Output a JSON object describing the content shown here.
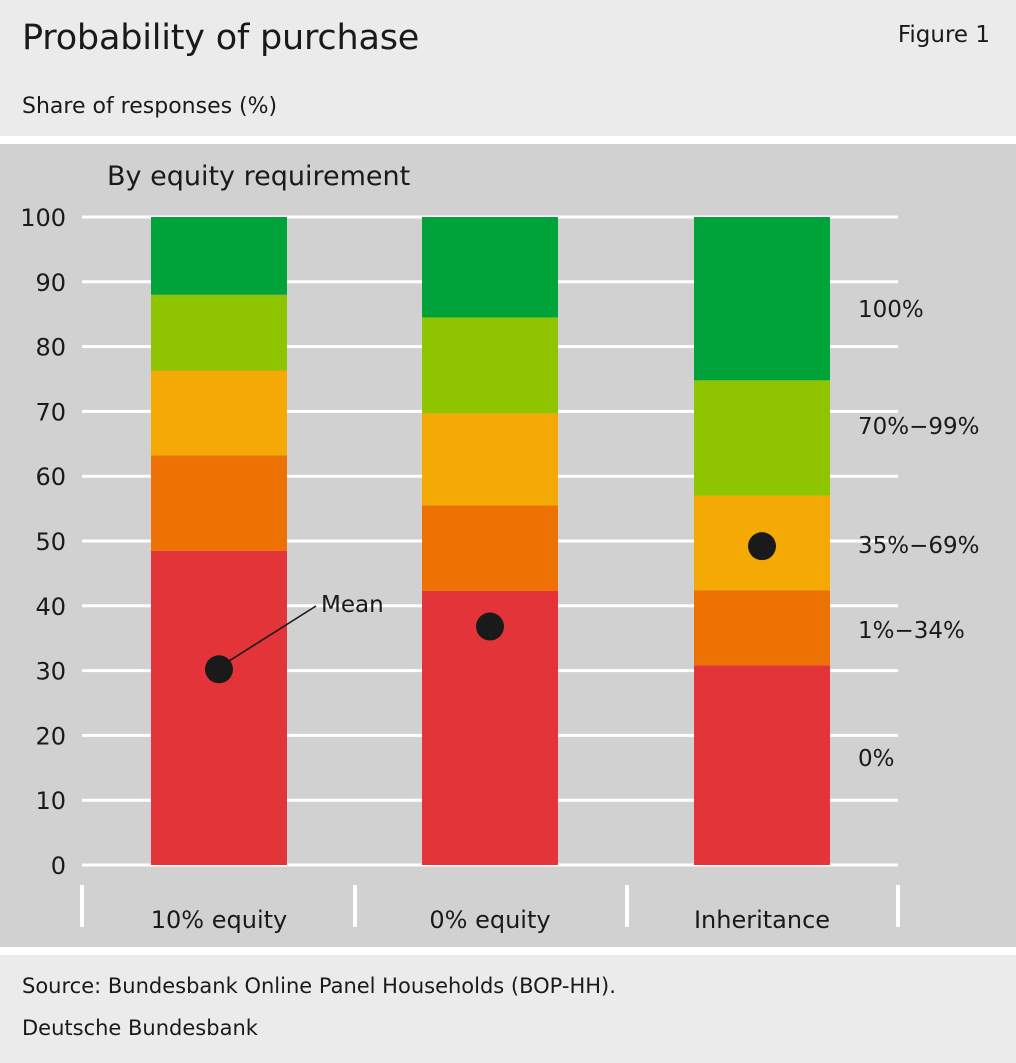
{
  "header": {
    "title": "Probability of purchase",
    "figure": "Figure 1",
    "subtitle": "Share of responses (%)"
  },
  "footer": {
    "source": "Source: Bundesbank Online Panel Households (BOP-HH).",
    "org": "Deutsche Bundesbank"
  },
  "chart_data": {
    "type": "bar",
    "stacked": true,
    "title": "By equity requirement",
    "xlabel": "",
    "ylabel": "",
    "ylim": [
      0,
      100
    ],
    "yticks": [
      0,
      10,
      20,
      30,
      40,
      50,
      60,
      70,
      80,
      90,
      100
    ],
    "grid": true,
    "legend": "right",
    "categories": [
      "10% equity",
      "0% equity",
      "Inheritance"
    ],
    "series": [
      {
        "name": "0%",
        "color": "#e3343a",
        "values": [
          48.5,
          42.3,
          30.8
        ]
      },
      {
        "name": "1%−34%",
        "color": "#ee7203",
        "values": [
          14.7,
          13.2,
          11.6
        ]
      },
      {
        "name": "35%−69%",
        "color": "#f5a905",
        "values": [
          13.1,
          14.2,
          14.6
        ]
      },
      {
        "name": "70%−99%",
        "color": "#8fc400",
        "values": [
          11.7,
          14.8,
          17.8
        ]
      },
      {
        "name": "100%",
        "color": "#00a23a",
        "values": [
          12.0,
          15.5,
          25.2
        ]
      }
    ],
    "mean": {
      "label": "Mean",
      "values": [
        30.2,
        36.8,
        49.2
      ]
    }
  }
}
